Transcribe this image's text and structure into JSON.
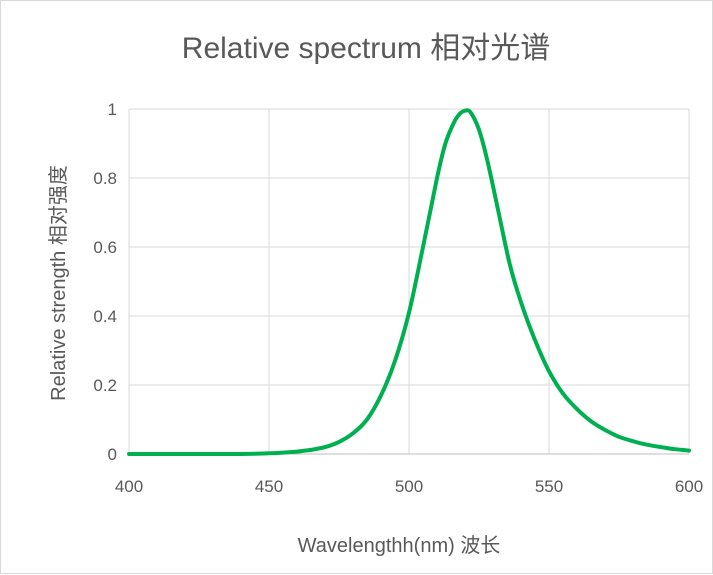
{
  "chart_data": {
    "type": "line",
    "title": "Relative spectrum 相对光谱",
    "xlabel": "Wavelengthh(nm)  波长",
    "ylabel": "Relative  strength   相对强度",
    "xlim": [
      400,
      600
    ],
    "ylim": [
      0,
      1
    ],
    "x_ticks": [
      400,
      450,
      500,
      550,
      600
    ],
    "y_ticks": [
      0,
      0.2,
      0.4,
      0.6,
      0.8,
      1
    ],
    "x_tick_labels": [
      "400",
      "450",
      "500",
      "550",
      "600"
    ],
    "y_tick_labels": [
      "0",
      "0.2",
      "0.4",
      "0.6",
      "0.8",
      "1"
    ],
    "grid": true,
    "legend": "none",
    "series": [
      {
        "color": "#00b050",
        "x": [
          400,
          420,
          440,
          450,
          455,
          460,
          465,
          470,
          475,
          480,
          485,
          490,
          495,
          500,
          505,
          510,
          513,
          516,
          518,
          520,
          522,
          525,
          528,
          532,
          536,
          540,
          545,
          550,
          555,
          560,
          565,
          570,
          575,
          580,
          585,
          590,
          595,
          600
        ],
        "y": [
          0.0,
          0.0,
          0.0,
          0.002,
          0.004,
          0.007,
          0.012,
          0.02,
          0.035,
          0.06,
          0.1,
          0.17,
          0.27,
          0.41,
          0.6,
          0.8,
          0.9,
          0.96,
          0.985,
          0.995,
          0.99,
          0.94,
          0.85,
          0.7,
          0.55,
          0.44,
          0.33,
          0.24,
          0.175,
          0.13,
          0.095,
          0.07,
          0.05,
          0.037,
          0.027,
          0.02,
          0.014,
          0.01
        ]
      }
    ]
  }
}
